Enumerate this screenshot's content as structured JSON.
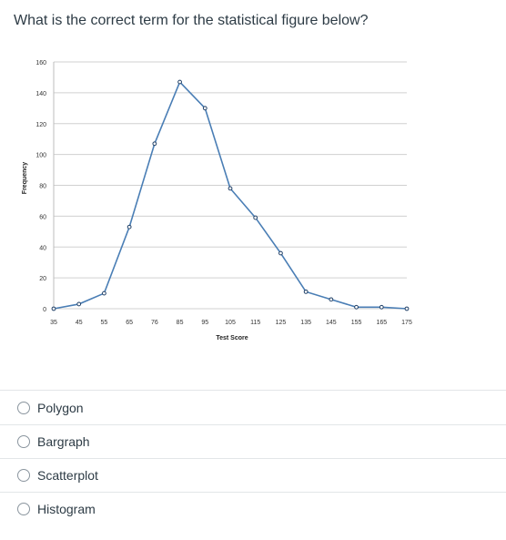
{
  "question": {
    "text": "What is the correct term for the statistical figure below?"
  },
  "chart_data": {
    "type": "line",
    "xlabel": "Test Score",
    "ylabel": "Frequency",
    "ylim": [
      0,
      160
    ],
    "yticks": [
      0,
      20,
      40,
      60,
      80,
      100,
      120,
      140,
      160
    ],
    "x": [
      35,
      45,
      55,
      65,
      76,
      85,
      95,
      105,
      115,
      125,
      135,
      145,
      155,
      165,
      175
    ],
    "values": [
      0,
      3,
      10,
      53,
      107,
      147,
      130,
      78,
      59,
      36,
      11,
      6,
      1,
      1,
      0
    ],
    "grid": true,
    "line_color": "#4a7eb5"
  },
  "options": [
    {
      "label": "Polygon"
    },
    {
      "label": "Bargraph"
    },
    {
      "label": "Scatterplot"
    },
    {
      "label": "Histogram"
    }
  ]
}
